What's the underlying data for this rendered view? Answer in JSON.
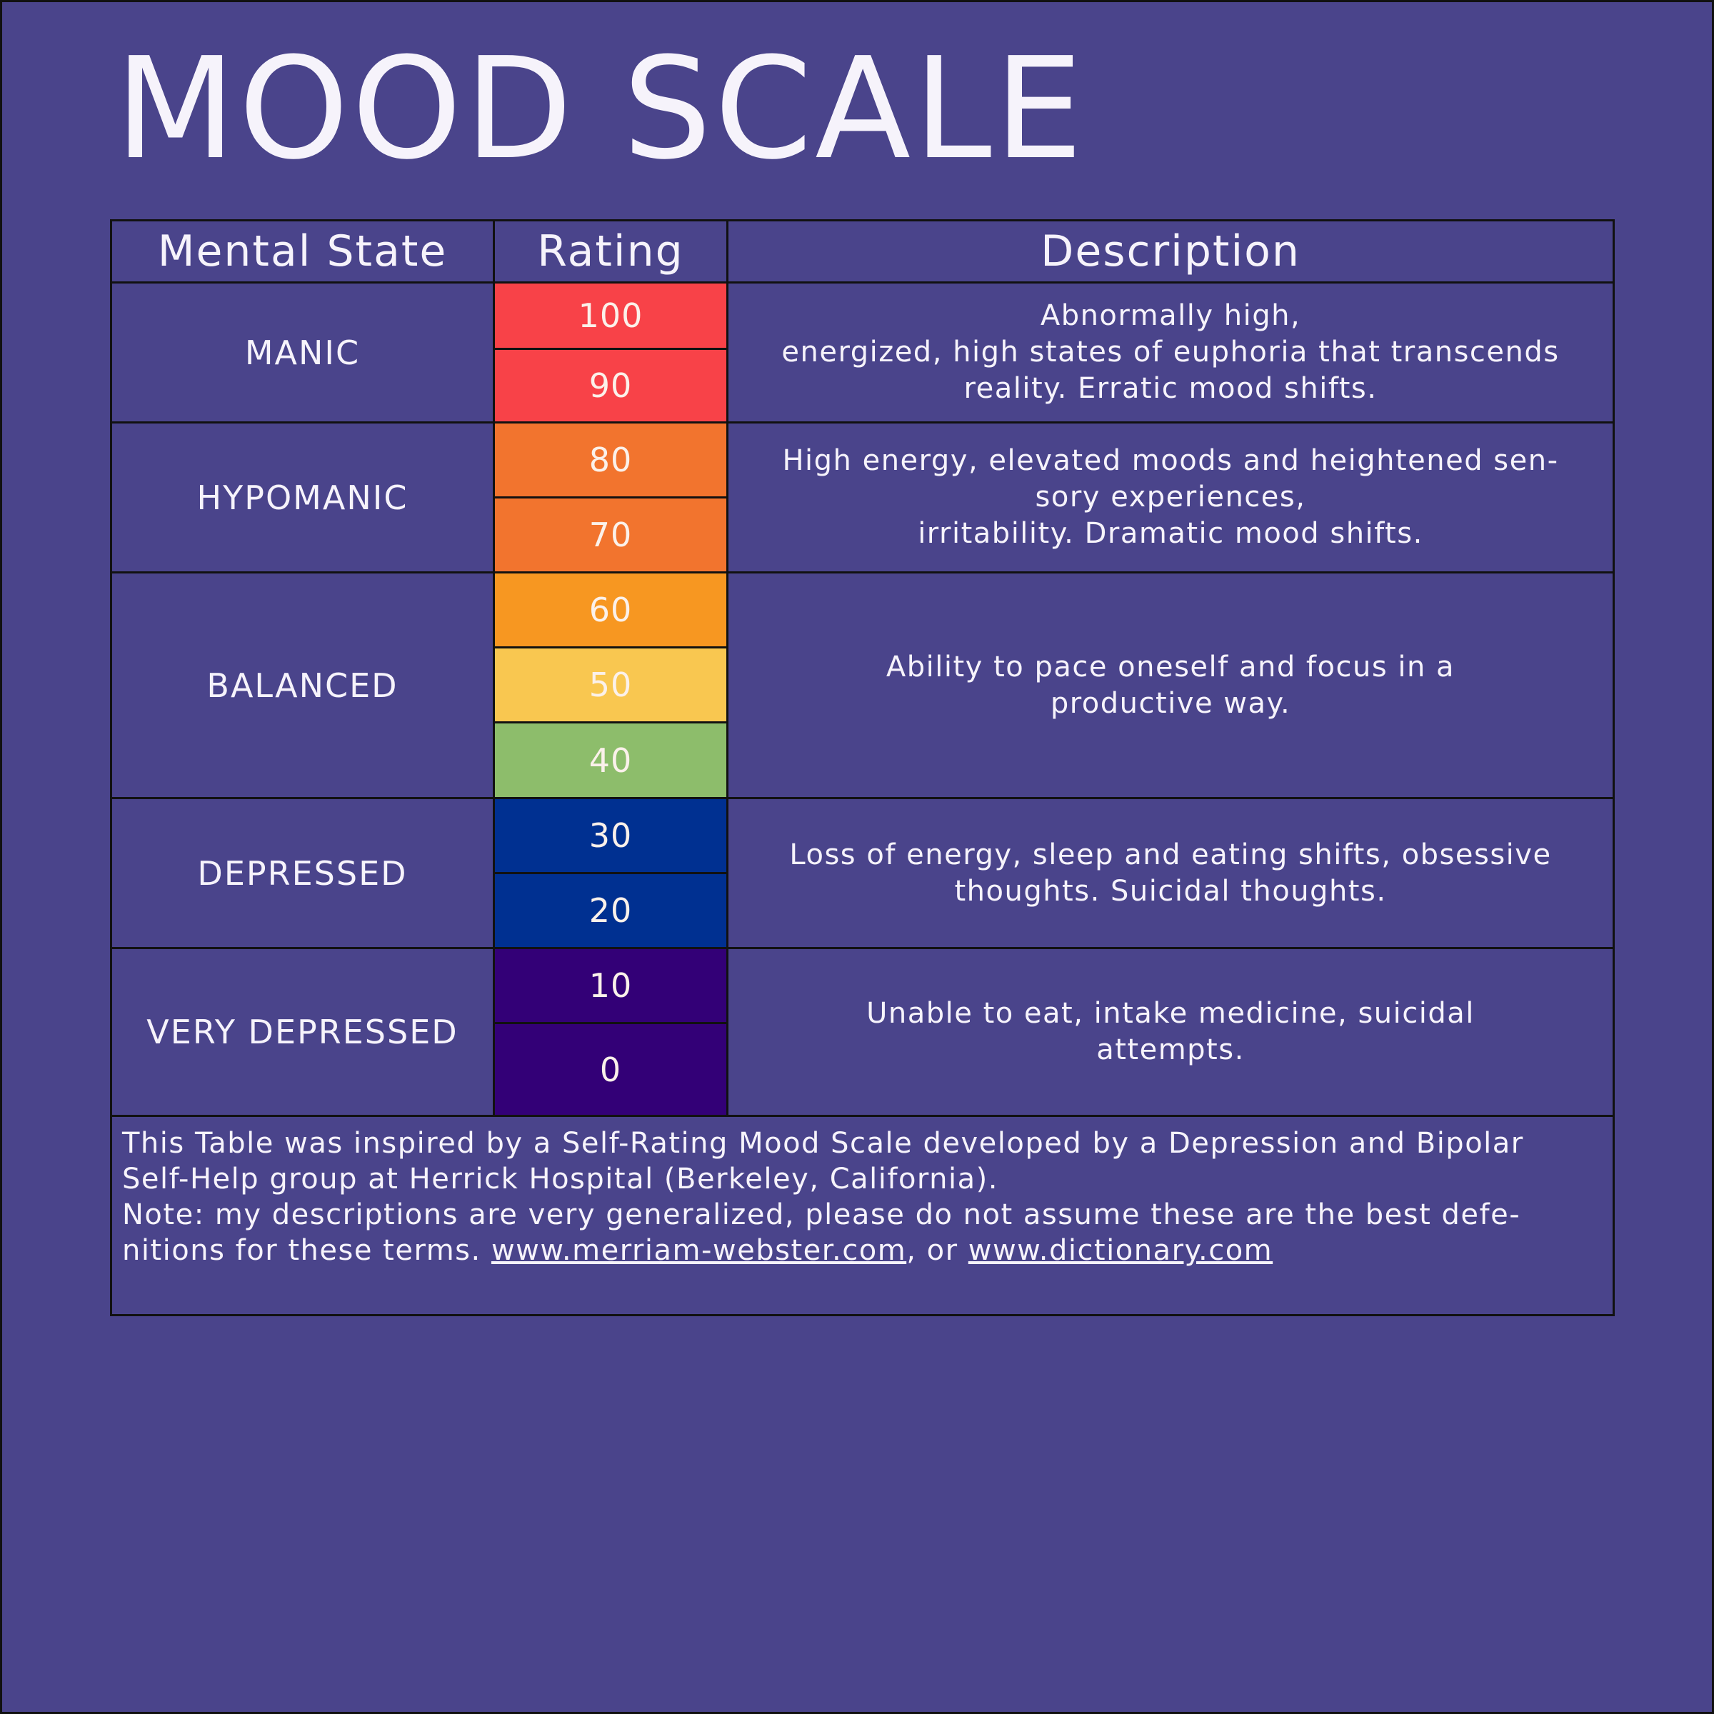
{
  "title": "MOOD SCALE",
  "colors": {
    "background": "#4a448b",
    "r100": "#f84248",
    "r90": "#f84248",
    "r80": "#f2742e",
    "r70": "#f2742e",
    "r60": "#f79721",
    "r50": "#f9c750",
    "r40": "#8dbd6b",
    "r30": "#003091",
    "r20": "#003091",
    "r10": "#330077",
    "r0": "#330077"
  },
  "table": {
    "headers": {
      "state": "Mental State",
      "rating": "Rating",
      "description": "Description"
    },
    "rows": [
      {
        "state": "MANIC",
        "ratings": [
          "100",
          "90"
        ],
        "description_lines": [
          "Abnormally high,",
          "energized, high states of euphoria that transcends",
          "reality. Erratic mood shifts."
        ]
      },
      {
        "state": "HYPOMANIC",
        "ratings": [
          "80",
          "70"
        ],
        "description_lines": [
          "High energy, elevated moods and heightened sen-",
          "sory experiences,",
          "irritability. Dramatic mood shifts."
        ]
      },
      {
        "state": "BALANCED",
        "ratings": [
          "60",
          "50",
          "40"
        ],
        "description_lines": [
          "Ability to pace oneself and focus in a",
          "productive way."
        ]
      },
      {
        "state": "DEPRESSED",
        "ratings": [
          "30",
          "20"
        ],
        "description_lines": [
          "Loss of energy, sleep and eating shifts, obsessive",
          "thoughts. Suicidal thoughts."
        ]
      },
      {
        "state": "VERY DEPRESSED",
        "ratings": [
          "10",
          "0"
        ],
        "description_lines": [
          "Unable to eat, intake medicine, suicidal",
          "attempts."
        ]
      }
    ]
  },
  "footer": {
    "line1": "This Table was inspired by a Self-Rating Mood Scale developed by a Depression and Bipolar",
    "line2": "Self-Help group at Herrick Hospital (Berkeley, California).",
    "line3": "Note: my descriptions are very generalized, please do not assume these are the best defe-",
    "line4_prefix": "nitions for these terms. ",
    "link1": "www.merriam-webster.com",
    "link_sep": ", or ",
    "link2": "www.dictionary.com"
  }
}
